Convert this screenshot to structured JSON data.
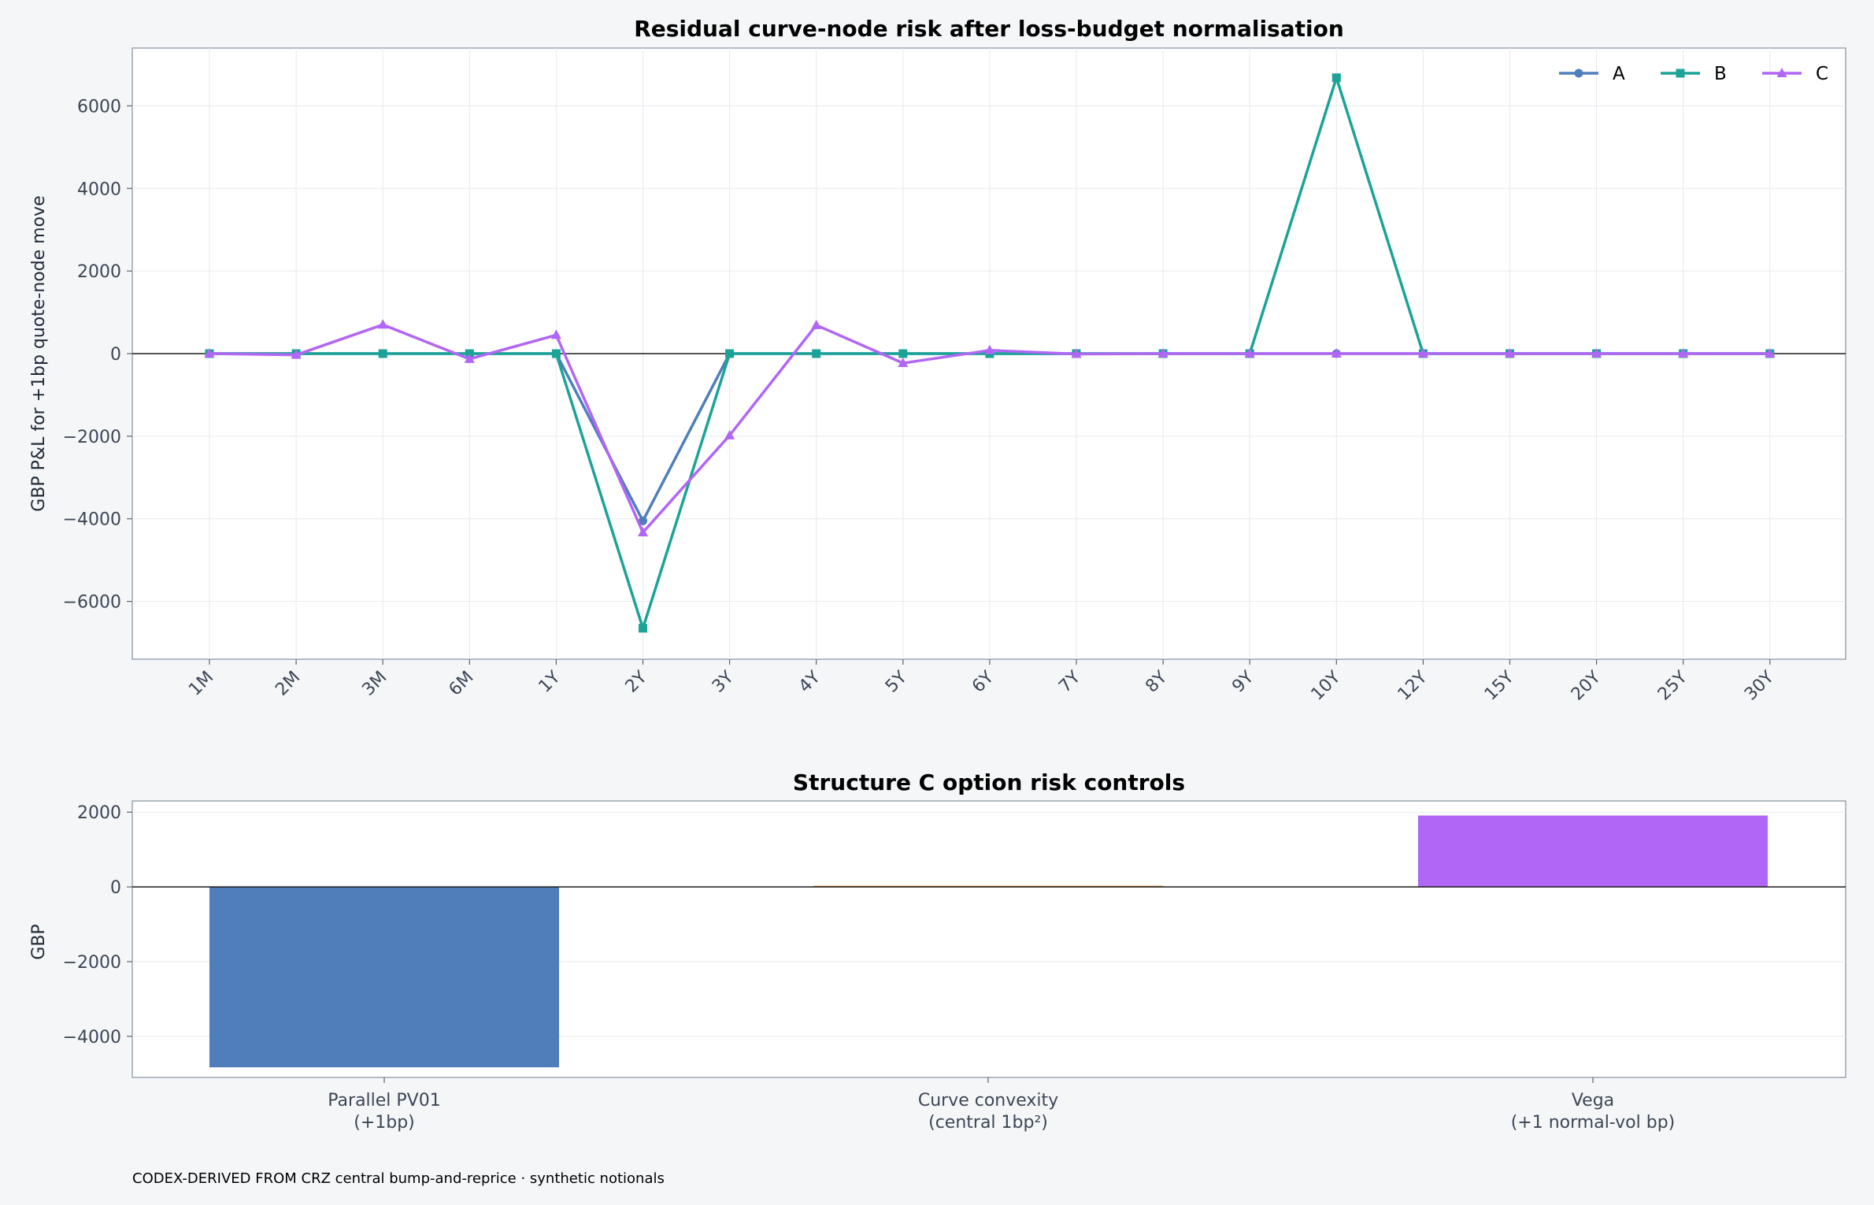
{
  "chart_data": [
    {
      "type": "line",
      "title": "Residual curve-node risk after loss-budget normalisation",
      "xlabel": "",
      "ylabel": "GBP P&L for +1bp quote-node move",
      "categories": [
        "1M",
        "2M",
        "3M",
        "6M",
        "1Y",
        "2Y",
        "3Y",
        "4Y",
        "5Y",
        "6Y",
        "7Y",
        "8Y",
        "9Y",
        "10Y",
        "12Y",
        "15Y",
        "20Y",
        "25Y",
        "30Y"
      ],
      "ylim": [
        -7400,
        7400
      ],
      "yticks": [
        -6000,
        -4000,
        -2000,
        0,
        2000,
        4000,
        6000
      ],
      "grid": true,
      "legend_position": "top-right",
      "series": [
        {
          "name": "A",
          "color": "#4f7ebb",
          "marker": "circle",
          "values": [
            0,
            0,
            0,
            0,
            0,
            -4050,
            0,
            0,
            0,
            0,
            0,
            0,
            0,
            0,
            0,
            0,
            0,
            0,
            0
          ]
        },
        {
          "name": "B",
          "color": "#1aa396",
          "marker": "square",
          "values": [
            0,
            0,
            0,
            0,
            0,
            -6650,
            0,
            0,
            0,
            0,
            0,
            0,
            0,
            6680,
            0,
            0,
            0,
            0,
            0
          ]
        },
        {
          "name": "C",
          "color": "#b266f5",
          "marker": "triangle",
          "values": [
            0,
            -30,
            700,
            -130,
            450,
            -4330,
            -1980,
            690,
            -230,
            80,
            -10,
            0,
            0,
            0,
            0,
            0,
            0,
            0,
            0
          ]
        }
      ]
    },
    {
      "type": "bar",
      "title": "Structure C option risk controls",
      "xlabel": "",
      "ylabel": "GBP",
      "categories": [
        [
          "Parallel PV01",
          "(+1bp)"
        ],
        [
          "Curve convexity",
          "(central 1bp²)"
        ],
        [
          "Vega",
          "(+1 normal-vol bp)"
        ]
      ],
      "values": [
        -4830,
        30,
        1910
      ],
      "colors": [
        "#4f7ebb",
        "#e0903a",
        "#b266f5"
      ],
      "ylim": [
        -5100,
        2300
      ],
      "yticks": [
        -4000,
        -2000,
        0,
        2000
      ],
      "grid": true
    }
  ],
  "footer": "CODEX-DERIVED FROM CRZ central bump-and-reprice · synthetic notionals"
}
